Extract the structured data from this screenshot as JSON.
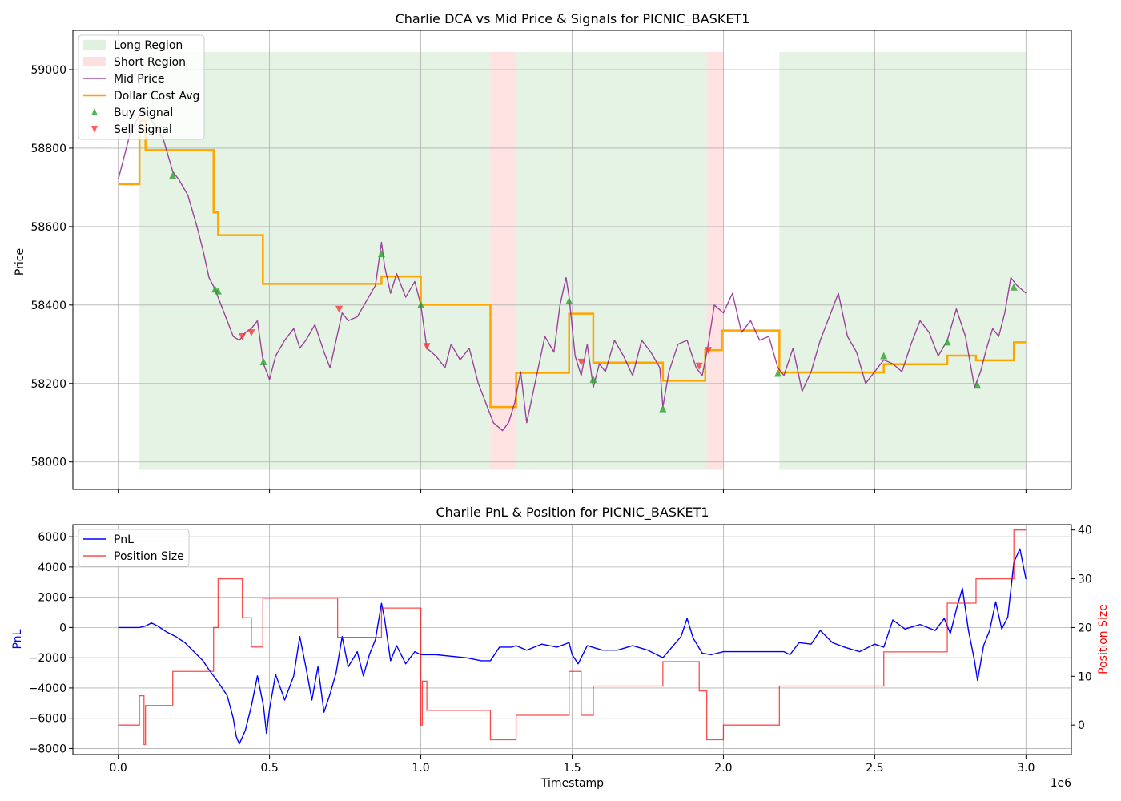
{
  "chart_data": [
    {
      "type": "line",
      "title": "Charlie DCA vs Mid Price & Signals for PICNIC_BASKET1",
      "xlabel": "",
      "ylabel": "Price",
      "xlim": [
        -150000,
        3150000
      ],
      "ylim": [
        57930,
        59100
      ],
      "grid": true,
      "legend_position": "top-left",
      "x_ticks": [
        0,
        500000,
        1000000,
        1500000,
        2000000,
        2500000,
        3000000
      ],
      "y_ticks": [
        58000,
        58200,
        58400,
        58600,
        58800,
        59000
      ],
      "y_tick_labels": [
        "58000",
        "58200",
        "58400",
        "58600",
        "58800",
        "59000"
      ],
      "legend": [
        "Long Region",
        "Short Region",
        "Mid Price",
        "Dollar Cost Avg",
        "Buy Signal",
        "Sell Signal"
      ],
      "colors": {
        "long_region": "#2ca02c",
        "short_region": "#ff9999",
        "mid_price": "#800080",
        "dca": "#ffa500",
        "buy": "#2ca02c",
        "sell": "#ff3333"
      },
      "region_band": [
        57980,
        59045
      ],
      "regions": [
        {
          "kind": "long",
          "x0": 70000,
          "x1": 1230000
        },
        {
          "kind": "short",
          "x0": 1230000,
          "x1": 1315000
        },
        {
          "kind": "long",
          "x0": 1315000,
          "x1": 1945000
        },
        {
          "kind": "short",
          "x0": 1945000,
          "x1": 2000000
        },
        {
          "kind": "long",
          "x0": 2185000,
          "x1": 3000000
        }
      ],
      "mid_price": {
        "name": "Mid Price",
        "x": [
          0,
          20000,
          40000,
          60000,
          80000,
          100000,
          120000,
          150000,
          180000,
          200000,
          230000,
          260000,
          280000,
          300000,
          320000,
          340000,
          360000,
          380000,
          400000,
          420000,
          440000,
          460000,
          480000,
          500000,
          520000,
          550000,
          580000,
          600000,
          620000,
          650000,
          680000,
          700000,
          720000,
          740000,
          760000,
          790000,
          820000,
          850000,
          870000,
          880000,
          900000,
          920000,
          950000,
          980000,
          1000000,
          1020000,
          1050000,
          1080000,
          1100000,
          1130000,
          1160000,
          1190000,
          1220000,
          1240000,
          1270000,
          1290000,
          1310000,
          1330000,
          1350000,
          1380000,
          1410000,
          1440000,
          1460000,
          1480000,
          1490000,
          1510000,
          1530000,
          1550000,
          1570000,
          1590000,
          1610000,
          1640000,
          1670000,
          1700000,
          1730000,
          1760000,
          1790000,
          1800000,
          1820000,
          1850000,
          1880000,
          1910000,
          1930000,
          1950000,
          1970000,
          2000000,
          2030000,
          2060000,
          2090000,
          2120000,
          2150000,
          2180000,
          2200000,
          2230000,
          2260000,
          2290000,
          2320000,
          2350000,
          2380000,
          2410000,
          2440000,
          2470000,
          2500000,
          2530000,
          2560000,
          2590000,
          2620000,
          2650000,
          2680000,
          2710000,
          2740000,
          2770000,
          2800000,
          2830000,
          2850000,
          2870000,
          2890000,
          2910000,
          2930000,
          2950000,
          2970000,
          3000000
        ],
        "values": [
          58720,
          58780,
          58840,
          58870,
          58900,
          58880,
          58860,
          58820,
          58740,
          58720,
          58680,
          58600,
          58540,
          58470,
          58440,
          58400,
          58360,
          58320,
          58310,
          58330,
          58340,
          58360,
          58250,
          58210,
          58270,
          58310,
          58340,
          58290,
          58310,
          58350,
          58280,
          58240,
          58310,
          58380,
          58360,
          58370,
          58410,
          58450,
          58560,
          58500,
          58430,
          58480,
          58420,
          58460,
          58400,
          58290,
          58270,
          58240,
          58300,
          58260,
          58290,
          58200,
          58140,
          58100,
          58080,
          58100,
          58150,
          58230,
          58100,
          58210,
          58320,
          58280,
          58400,
          58470,
          58420,
          58270,
          58220,
          58300,
          58190,
          58250,
          58230,
          58310,
          58270,
          58220,
          58310,
          58280,
          58240,
          58140,
          58230,
          58300,
          58310,
          58240,
          58220,
          58300,
          58400,
          58380,
          58430,
          58330,
          58360,
          58310,
          58320,
          58240,
          58220,
          58290,
          58180,
          58230,
          58310,
          58370,
          58430,
          58320,
          58280,
          58200,
          58230,
          58260,
          58250,
          58230,
          58300,
          58360,
          58330,
          58270,
          58310,
          58390,
          58320,
          58190,
          58230,
          58290,
          58340,
          58320,
          58380,
          58470,
          58450,
          58430
        ]
      },
      "dca": {
        "name": "Dollar Cost Avg",
        "x": [
          0,
          70000,
          70000,
          90000,
          90000,
          180000,
          180000,
          315000,
          315000,
          330000,
          330000,
          478000,
          478000,
          870000,
          870000,
          1000000,
          1000000,
          1230000,
          1230000,
          1315000,
          1315000,
          1490000,
          1490000,
          1570000,
          1570000,
          1800000,
          1800000,
          1940000,
          1940000,
          1995000,
          1995000,
          2185000,
          2185000,
          2530000,
          2530000,
          2740000,
          2740000,
          2835000,
          2835000,
          2960000,
          2960000,
          3000000
        ],
        "values": [
          58708,
          58708,
          58870,
          58870,
          58795,
          58795,
          58795,
          58795,
          58636,
          58636,
          58578,
          58578,
          58454,
          58454,
          58473,
          58473,
          58401,
          58401,
          58140,
          58140,
          58227,
          58227,
          58378,
          58378,
          58253,
          58253,
          58207,
          58207,
          58285,
          58285,
          58335,
          58335,
          58228,
          58228,
          58249,
          58249,
          58271,
          58271,
          58259,
          58259,
          58305,
          58305
        ]
      },
      "buy_signals": {
        "name": "Buy Signal",
        "x": [
          180000,
          320000,
          330000,
          480000,
          870000,
          1000000,
          1490000,
          1570000,
          1800000,
          2180000,
          2530000,
          2740000,
          2840000,
          2960000
        ],
        "values": [
          58730,
          58440,
          58435,
          58255,
          58530,
          58400,
          58410,
          58210,
          58135,
          58225,
          58270,
          58305,
          58195,
          58445
        ]
      },
      "sell_signals": {
        "name": "Sell Signal",
        "x": [
          410000,
          440000,
          730000,
          1020000,
          1530000,
          1920000,
          1950000
        ],
        "values": [
          58320,
          58330,
          58390,
          58295,
          58255,
          58245,
          58285
        ]
      }
    },
    {
      "type": "line",
      "title": "Charlie PnL & Position for PICNIC_BASKET1",
      "xlabel": "Timestamp",
      "ylabel": "PnL",
      "y2label": "Position Size",
      "x_offset_label": "1e6",
      "xlim": [
        -150000,
        3150000
      ],
      "ylim": [
        -8400,
        6800
      ],
      "y2lim": [
        -6.05,
        41.1
      ],
      "grid": true,
      "legend_position": "top-left",
      "x_ticks": [
        0,
        500000,
        1000000,
        1500000,
        2000000,
        2500000,
        3000000
      ],
      "x_tick_labels": [
        "0.0",
        "0.5",
        "1.0",
        "1.5",
        "2.0",
        "2.5",
        "3.0"
      ],
      "y_ticks": [
        -8000,
        -6000,
        -4000,
        -2000,
        0,
        2000,
        4000,
        6000
      ],
      "y_tick_labels": [
        "−8000",
        "−6000",
        "−4000",
        "−2000",
        "0",
        "2000",
        "4000",
        "6000"
      ],
      "y2_ticks": [
        0,
        10,
        20,
        30,
        40
      ],
      "y2_tick_labels": [
        "0",
        "10",
        "20",
        "30",
        "40"
      ],
      "legend": [
        "PnL",
        "Position Size"
      ],
      "colors": {
        "pnl": "#0000ff",
        "position": "#ff0000",
        "ylabel": "#0000ff",
        "y2label": "#ff0000"
      },
      "pnl": {
        "name": "PnL",
        "x": [
          0,
          70000,
          90000,
          110000,
          130000,
          160000,
          190000,
          220000,
          250000,
          280000,
          300000,
          330000,
          360000,
          380000,
          390000,
          400000,
          420000,
          440000,
          460000,
          480000,
          490000,
          500000,
          520000,
          550000,
          580000,
          600000,
          620000,
          640000,
          660000,
          680000,
          700000,
          720000,
          740000,
          760000,
          790000,
          810000,
          830000,
          850000,
          870000,
          880000,
          900000,
          920000,
          950000,
          980000,
          1000000,
          1050000,
          1100000,
          1150000,
          1200000,
          1230000,
          1260000,
          1300000,
          1315000,
          1350000,
          1400000,
          1450000,
          1490000,
          1500000,
          1520000,
          1550000,
          1600000,
          1650000,
          1700000,
          1750000,
          1800000,
          1830000,
          1860000,
          1880000,
          1900000,
          1930000,
          1960000,
          2000000,
          2050000,
          2100000,
          2150000,
          2185000,
          2200000,
          2220000,
          2250000,
          2290000,
          2320000,
          2360000,
          2400000,
          2450000,
          2500000,
          2530000,
          2560000,
          2600000,
          2650000,
          2700000,
          2730000,
          2750000,
          2770000,
          2790000,
          2810000,
          2830000,
          2840000,
          2860000,
          2880000,
          2900000,
          2920000,
          2940000,
          2960000,
          2980000,
          3000000
        ],
        "values": [
          0,
          0,
          100,
          300,
          100,
          -300,
          -600,
          -1000,
          -1600,
          -2200,
          -2800,
          -3600,
          -4500,
          -6000,
          -7200,
          -7700,
          -6800,
          -5200,
          -3200,
          -5200,
          -7000,
          -5400,
          -3100,
          -4800,
          -3200,
          -600,
          -2600,
          -4800,
          -2600,
          -5600,
          -4400,
          -3000,
          -600,
          -2600,
          -1600,
          -3200,
          -1800,
          -800,
          1600,
          600,
          -2200,
          -1200,
          -2400,
          -1600,
          -1800,
          -1800,
          -1900,
          -2000,
          -2200,
          -2200,
          -1300,
          -1300,
          -1200,
          -1500,
          -1100,
          -1300,
          -1000,
          -1800,
          -2400,
          -1200,
          -1500,
          -1500,
          -1200,
          -1500,
          -2000,
          -1300,
          -600,
          600,
          -700,
          -1700,
          -1800,
          -1600,
          -1600,
          -1600,
          -1600,
          -1600,
          -1600,
          -1800,
          -1000,
          -1100,
          -200,
          -1000,
          -1300,
          -1600,
          -1100,
          -1300,
          500,
          -100,
          200,
          -200,
          600,
          -400,
          1200,
          2600,
          -200,
          -2200,
          -3500,
          -1200,
          -200,
          1700,
          -100,
          700,
          4300,
          5200,
          3200
        ]
      },
      "position": {
        "name": "Position Size",
        "x": [
          0,
          70000,
          70000,
          85000,
          85000,
          90000,
          90000,
          180000,
          180000,
          315000,
          315000,
          330000,
          330000,
          410000,
          410000,
          440000,
          440000,
          478000,
          478000,
          725000,
          725000,
          870000,
          870000,
          1000000,
          1000000,
          1005000,
          1005000,
          1020000,
          1020000,
          1230000,
          1230000,
          1315000,
          1315000,
          1490000,
          1490000,
          1530000,
          1530000,
          1570000,
          1570000,
          1800000,
          1800000,
          1920000,
          1920000,
          1945000,
          1945000,
          2000000,
          2000000,
          2185000,
          2185000,
          2530000,
          2530000,
          2740000,
          2740000,
          2835000,
          2835000,
          2960000,
          2960000,
          3000000
        ],
        "values": [
          0,
          0,
          6,
          6,
          -4,
          -4,
          4,
          4,
          11,
          11,
          20,
          20,
          30,
          30,
          22,
          22,
          16,
          16,
          26,
          26,
          18,
          18,
          24,
          24,
          0,
          0,
          9,
          9,
          3,
          3,
          -3,
          -3,
          2,
          2,
          11,
          11,
          2,
          2,
          8,
          8,
          13,
          13,
          7,
          7,
          -3,
          -3,
          0,
          0,
          8,
          8,
          15,
          15,
          25,
          25,
          30,
          30,
          40,
          40
        ]
      }
    }
  ]
}
